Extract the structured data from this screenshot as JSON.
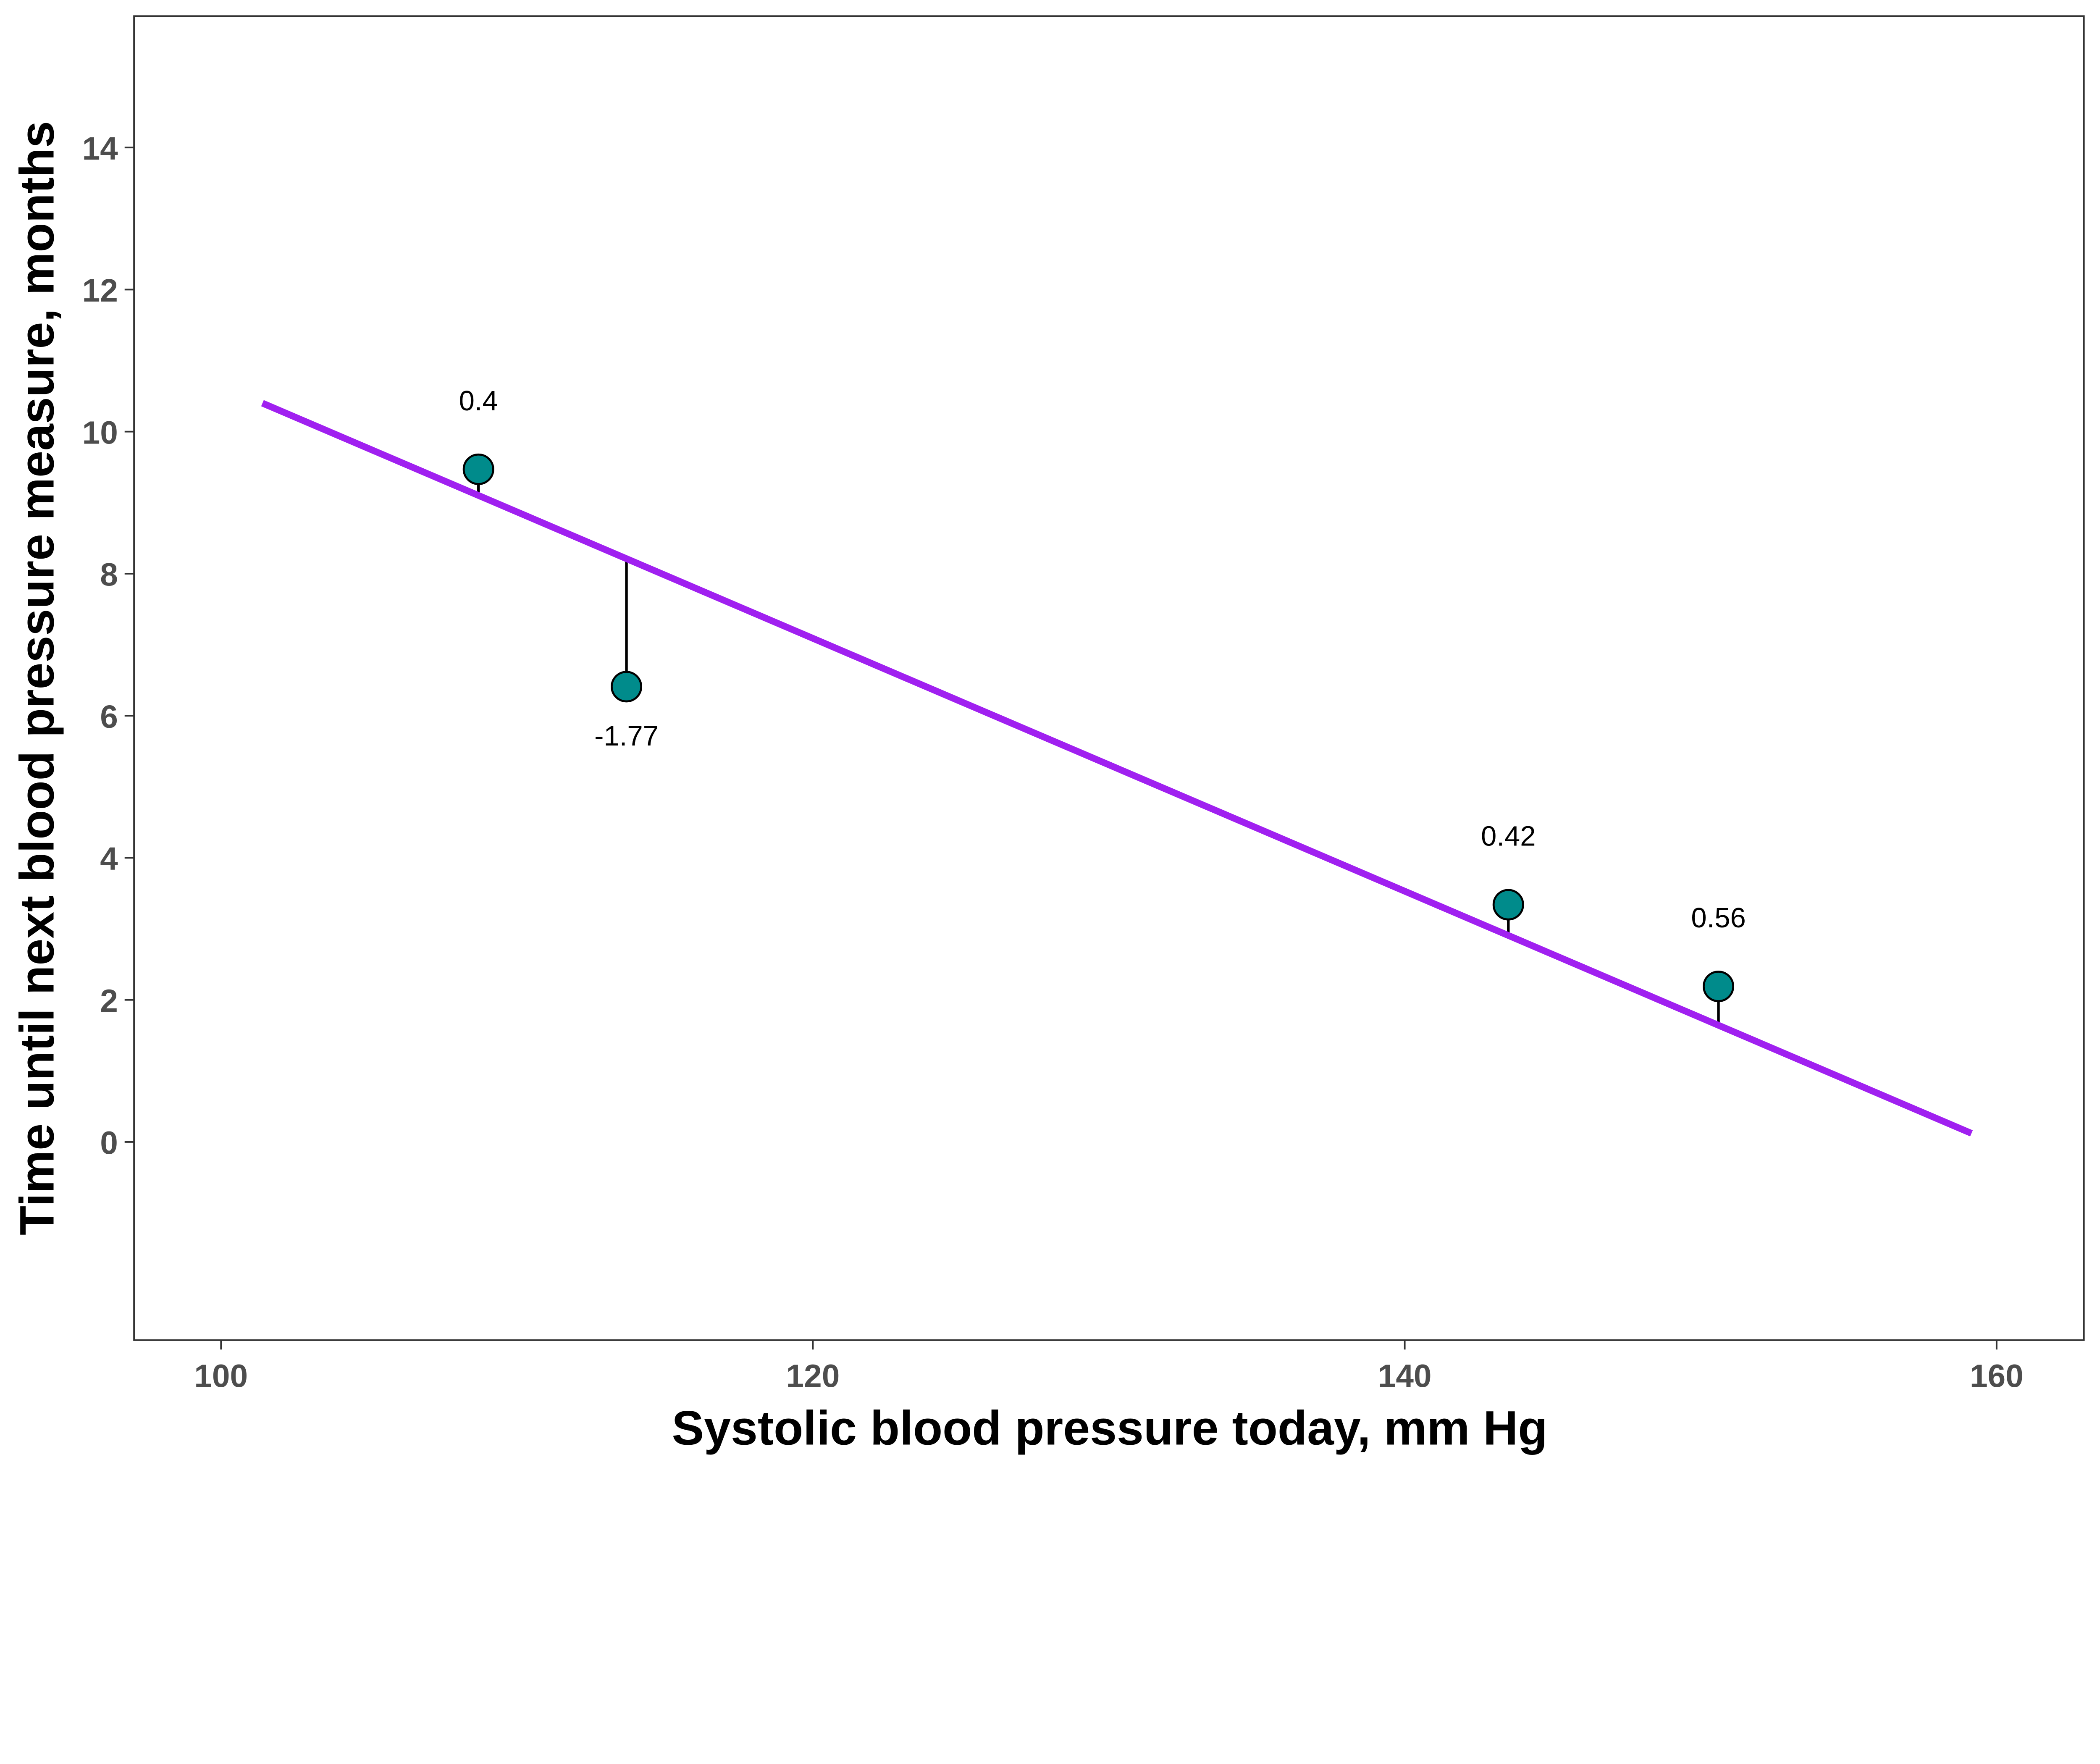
{
  "chart_data": {
    "type": "scatter",
    "title": "",
    "xlabel": "Systolic blood pressure today, mm Hg",
    "ylabel": "Time until next blood pressure measure, months",
    "xlim": [
      97.06,
      162.95
    ],
    "ylim": [
      -2.79,
      15.85
    ],
    "xticks": [
      100,
      120,
      140,
      160
    ],
    "yticks": [
      0,
      2,
      4,
      6,
      8,
      10,
      12,
      14
    ],
    "grid": false,
    "points": [
      {
        "x": 108.7,
        "y": 9.47,
        "residual_label": "0.4"
      },
      {
        "x": 113.7,
        "y": 6.41,
        "residual_label": "-1.77"
      },
      {
        "x": 143.5,
        "y": 3.34,
        "residual_label": "0.42"
      },
      {
        "x": 150.6,
        "y": 2.19,
        "residual_label": "0.56"
      }
    ],
    "regression_line": {
      "intercept": 28.45,
      "slope": -0.178,
      "x_range": [
        101.4,
        159.15
      ]
    },
    "colors": {
      "point_fill": "#008B8B",
      "point_stroke": "#000000",
      "line": "#A020F0",
      "residual": "#000000"
    }
  }
}
